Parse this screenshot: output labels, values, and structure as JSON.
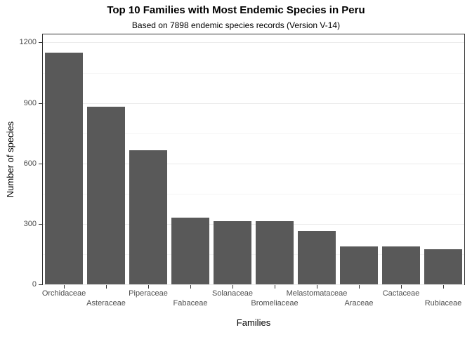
{
  "chart_data": {
    "type": "bar",
    "title": "Top 10 Families with Most Endemic Species in Peru",
    "subtitle": "Based on 7898 endemic species records (Version V-14)",
    "xlabel": "Families",
    "ylabel": "Number of species",
    "categories": [
      "Orchidaceae",
      "Asteraceae",
      "Piperaceae",
      "Fabaceae",
      "Solanaceae",
      "Bromeliaceae",
      "Melastomataceae",
      "Araceae",
      "Cactaceae",
      "Rubiaceae"
    ],
    "values": [
      1150,
      880,
      665,
      330,
      315,
      315,
      265,
      190,
      190,
      175
    ],
    "yticks": [
      0,
      300,
      600,
      900,
      1200
    ],
    "yticks_minor": [
      150,
      450,
      750,
      1050
    ],
    "ylim": [
      0,
      1240
    ],
    "bar_color": "#595959",
    "panel_border_color": "#333333",
    "grid_major_color": "#ebebeb",
    "grid_minor_color": "#f5f5f5",
    "tick_color": "#333333",
    "grid": "on",
    "legend": "none",
    "x_label_layout": "staggered-two-rows"
  }
}
